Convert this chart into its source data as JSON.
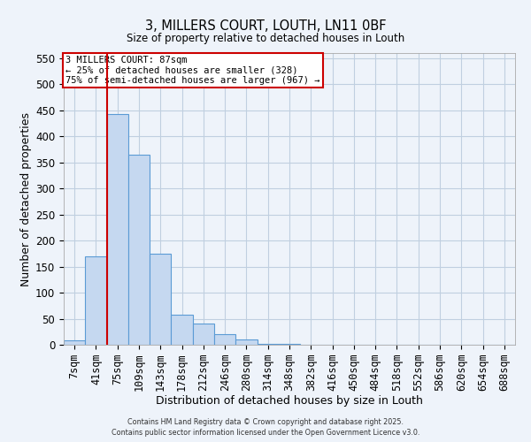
{
  "title": "3, MILLERS COURT, LOUTH, LN11 0BF",
  "subtitle": "Size of property relative to detached houses in Louth",
  "xlabel": "Distribution of detached houses by size in Louth",
  "ylabel": "Number of detached properties",
  "bin_labels": [
    "7sqm",
    "41sqm",
    "75sqm",
    "109sqm",
    "143sqm",
    "178sqm",
    "212sqm",
    "246sqm",
    "280sqm",
    "314sqm",
    "348sqm",
    "382sqm",
    "416sqm",
    "450sqm",
    "484sqm",
    "518sqm",
    "552sqm",
    "586sqm",
    "620sqm",
    "654sqm",
    "688sqm"
  ],
  "bar_heights": [
    8,
    170,
    443,
    365,
    175,
    57,
    40,
    20,
    10,
    2,
    1,
    0,
    0,
    0,
    0,
    0,
    0,
    0,
    0,
    0,
    0
  ],
  "bar_color": "#c5d8f0",
  "bar_edge_color": "#5b9bd5",
  "grid_color": "#c0cfe0",
  "background_color": "#eef3fa",
  "vline_x": 1.5,
  "vline_color": "#cc0000",
  "annotation_text": "3 MILLERS COURT: 87sqm\n← 25% of detached houses are smaller (328)\n75% of semi-detached houses are larger (967) →",
  "annotation_box_color": "#ffffff",
  "annotation_box_edge": "#cc0000",
  "ylim": [
    0,
    560
  ],
  "yticks": [
    0,
    50,
    100,
    150,
    200,
    250,
    300,
    350,
    400,
    450,
    500,
    550
  ],
  "footnote1": "Contains HM Land Registry data © Crown copyright and database right 2025.",
  "footnote2": "Contains public sector information licensed under the Open Government Licence v3.0."
}
